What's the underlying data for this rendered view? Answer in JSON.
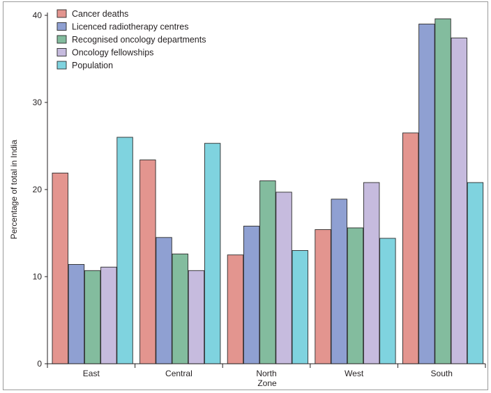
{
  "chart_data": {
    "type": "bar",
    "title": "",
    "xlabel": "Zone",
    "ylabel": "Percentage of total in India",
    "ylim": [
      0,
      40
    ],
    "yticks": [
      0,
      10,
      20,
      30,
      40
    ],
    "grid": false,
    "legend_position": "top-left",
    "categories": [
      "East",
      "Central",
      "North",
      "West",
      "South"
    ],
    "series": [
      {
        "name": "Cancer deaths",
        "color": "#e3958f",
        "values": [
          21.9,
          23.4,
          12.5,
          15.4,
          26.5
        ]
      },
      {
        "name": "Licenced radiotherapy centres",
        "color": "#8fa0d2",
        "values": [
          11.4,
          14.5,
          15.8,
          18.9,
          39.0
        ]
      },
      {
        "name": "Recognised oncology departments",
        "color": "#83bc9e",
        "values": [
          10.7,
          12.6,
          21.0,
          15.6,
          39.6
        ]
      },
      {
        "name": "Oncology fellowships",
        "color": "#c6bbde",
        "values": [
          11.1,
          10.7,
          19.7,
          20.8,
          37.4
        ]
      },
      {
        "name": "Population",
        "color": "#7fd3df",
        "values": [
          26.0,
          25.3,
          13.0,
          14.4,
          20.8
        ]
      }
    ]
  }
}
